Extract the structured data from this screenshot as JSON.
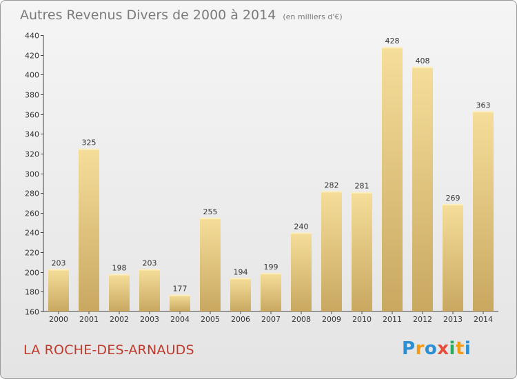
{
  "header": {
    "title": "Autres Revenus Divers de 2000 à 2014",
    "unit": "(en milliers d'€)"
  },
  "footer": {
    "commune": "LA ROCHE-DES-ARNAUDS",
    "logo_letters": [
      "P",
      "r",
      "o",
      "x",
      "i",
      "t",
      "i"
    ],
    "logo_colors": [
      "#2b8fd6",
      "#f39c12",
      "#2b8fd6",
      "#e74c3c",
      "#27ae60",
      "#f39c12",
      "#2b8fd6"
    ]
  },
  "colors": {
    "bar_light": "#f5de9a",
    "bar_dark": "#c9a860",
    "commune_text": "#c0392b"
  },
  "chart_data": {
    "type": "bar",
    "title": "Autres Revenus Divers de 2000 à 2014",
    "subtitle": "(en milliers d'€)",
    "categories": [
      "2000",
      "2001",
      "2002",
      "2003",
      "2004",
      "2005",
      "2006",
      "2007",
      "2008",
      "2009",
      "2010",
      "2011",
      "2012",
      "2013",
      "2014"
    ],
    "values": [
      203,
      325,
      198,
      203,
      177,
      255,
      194,
      199,
      240,
      282,
      281,
      428,
      408,
      269,
      363
    ],
    "ylim": [
      160,
      440
    ],
    "yticks": [
      160,
      180,
      200,
      220,
      240,
      260,
      280,
      300,
      320,
      340,
      360,
      380,
      400,
      420,
      440
    ],
    "grid": false,
    "xlabel": "",
    "ylabel": ""
  }
}
